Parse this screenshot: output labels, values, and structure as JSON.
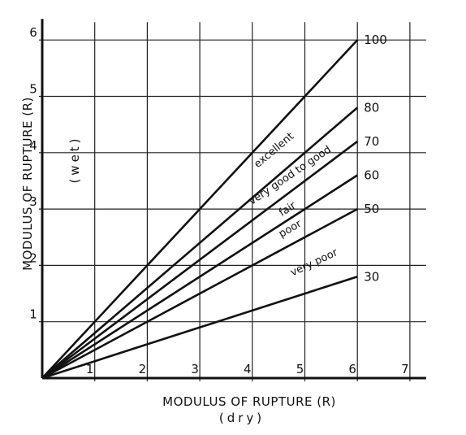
{
  "chart_data": {
    "type": "line",
    "title": "",
    "xlabel": "MODULUS OF RUPTURE (R)",
    "xlabel_sub": "(dry)",
    "ylabel": "MODULUS OF RUPTURE (R)",
    "ylabel_sub": "(wet)",
    "xlim": [
      0,
      7
    ],
    "ylim": [
      0,
      6
    ],
    "x_ticks": [
      "1",
      "2",
      "3",
      "4",
      "5",
      "6",
      "7"
    ],
    "y_ticks": [
      "1",
      "2",
      "3",
      "4",
      "5",
      "6"
    ],
    "grid": true,
    "series": [
      {
        "name": "100",
        "x": [
          0,
          6
        ],
        "y": [
          0,
          6.0
        ]
      },
      {
        "name": "80",
        "x": [
          0,
          6
        ],
        "y": [
          0,
          4.8
        ]
      },
      {
        "name": "70",
        "x": [
          0,
          6
        ],
        "y": [
          0,
          4.2
        ]
      },
      {
        "name": "60",
        "x": [
          0,
          6
        ],
        "y": [
          0,
          3.6
        ]
      },
      {
        "name": "50",
        "x": [
          0,
          6
        ],
        "y": [
          0,
          3.0
        ]
      },
      {
        "name": "30",
        "x": [
          0,
          6
        ],
        "y": [
          0,
          1.8
        ]
      }
    ],
    "annotations": [
      {
        "text": "excellent",
        "x": 4.45,
        "y": 4.0
      },
      {
        "text": "very good to good",
        "x": 4.75,
        "y": 3.55
      },
      {
        "text": "fair",
        "x": 4.7,
        "y": 2.95
      },
      {
        "text": "poor",
        "x": 4.75,
        "y": 2.6
      },
      {
        "text": "very poor",
        "x": 5.2,
        "y": 2.0
      }
    ]
  }
}
